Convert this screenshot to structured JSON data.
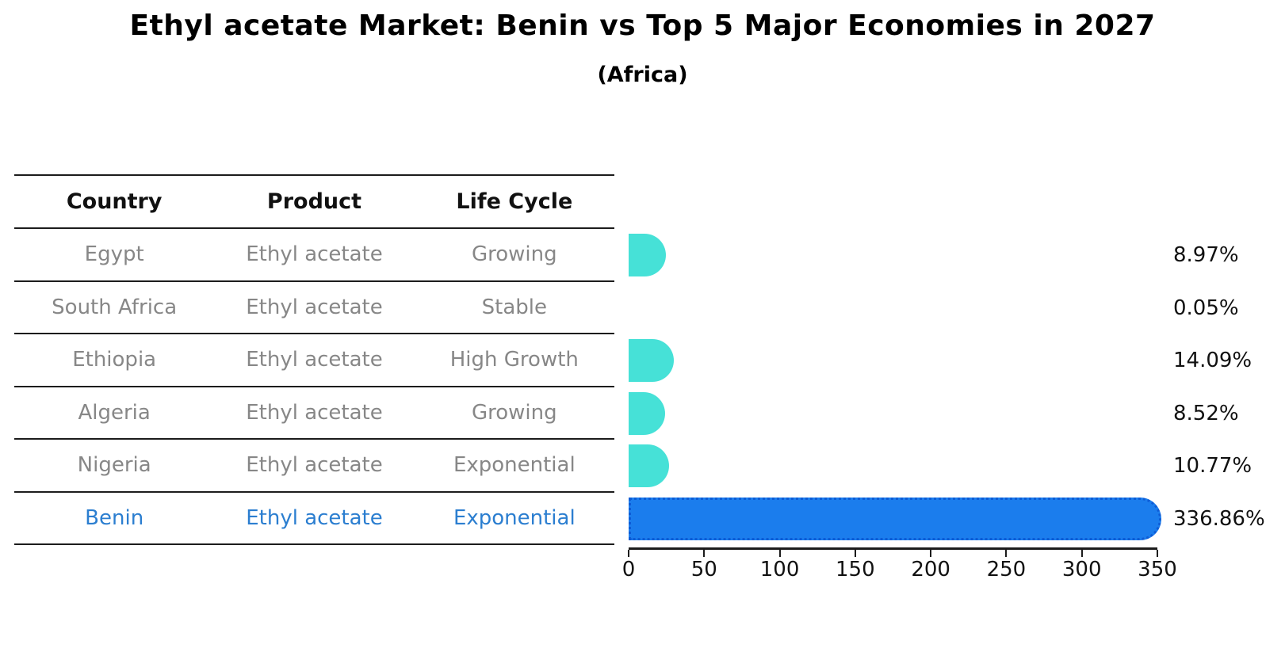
{
  "title": "Ethyl acetate Market: Benin vs Top 5 Major Economies in 2027",
  "subtitle": "(Africa)",
  "table": {
    "headers": [
      "Country",
      "Product",
      "Life Cycle"
    ],
    "rows": [
      {
        "country": "Egypt",
        "product": "Ethyl acetate",
        "life_cycle": "Growing",
        "highlight": false
      },
      {
        "country": "South Africa",
        "product": "Ethyl acetate",
        "life_cycle": "Stable",
        "highlight": false
      },
      {
        "country": "Ethiopia",
        "product": "Ethyl acetate",
        "life_cycle": "High Growth",
        "highlight": false
      },
      {
        "country": "Algeria",
        "product": "Ethyl acetate",
        "life_cycle": "Growing",
        "highlight": false
      },
      {
        "country": "Nigeria",
        "product": "Ethyl acetate",
        "life_cycle": "Exponential",
        "highlight": false
      },
      {
        "country": "Benin",
        "product": "Ethyl acetate",
        "life_cycle": "Exponential",
        "highlight": true
      }
    ]
  },
  "chart_data": {
    "type": "bar",
    "orientation": "horizontal",
    "title": "Ethyl acetate Market: Benin vs Top 5 Major Economies in 2027",
    "subtitle": "(Africa)",
    "categories": [
      "Egypt",
      "South Africa",
      "Ethiopia",
      "Algeria",
      "Nigeria",
      "Benin"
    ],
    "values": [
      8.97,
      0.05,
      14.09,
      8.52,
      10.77,
      336.86
    ],
    "value_labels": [
      "8.97%",
      "0.05%",
      "14.09%",
      "8.52%",
      "10.77%",
      "336.86%"
    ],
    "highlight_index": 5,
    "xlabel": "",
    "ylabel": "",
    "xlim": [
      0,
      350
    ],
    "xticks": [
      0,
      50,
      100,
      150,
      200,
      250,
      300,
      350
    ],
    "grid": false,
    "legend": "none"
  },
  "colors": {
    "bar_default": "#46e1d7",
    "bar_highlight_fill": "#1b7ded",
    "bar_highlight_edge": "#0d5cd6",
    "highlight_text": "#2b7ed0",
    "table_text": "#878787",
    "header_text": "#111111",
    "line": "#1c1c1c"
  }
}
